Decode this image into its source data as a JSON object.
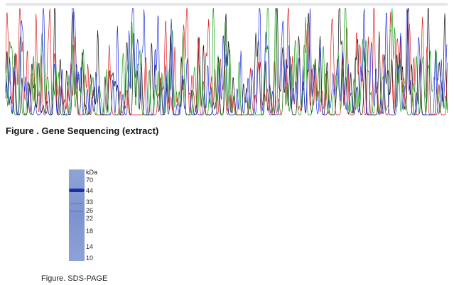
{
  "figure1": {
    "caption": "Figure . Gene Sequencing (extract)"
  },
  "figure2": {
    "caption": "Figure. SDS-PAGE",
    "unit": "kDa",
    "markers": [
      70,
      44,
      33,
      26,
      22,
      18,
      14,
      10
    ]
  }
}
